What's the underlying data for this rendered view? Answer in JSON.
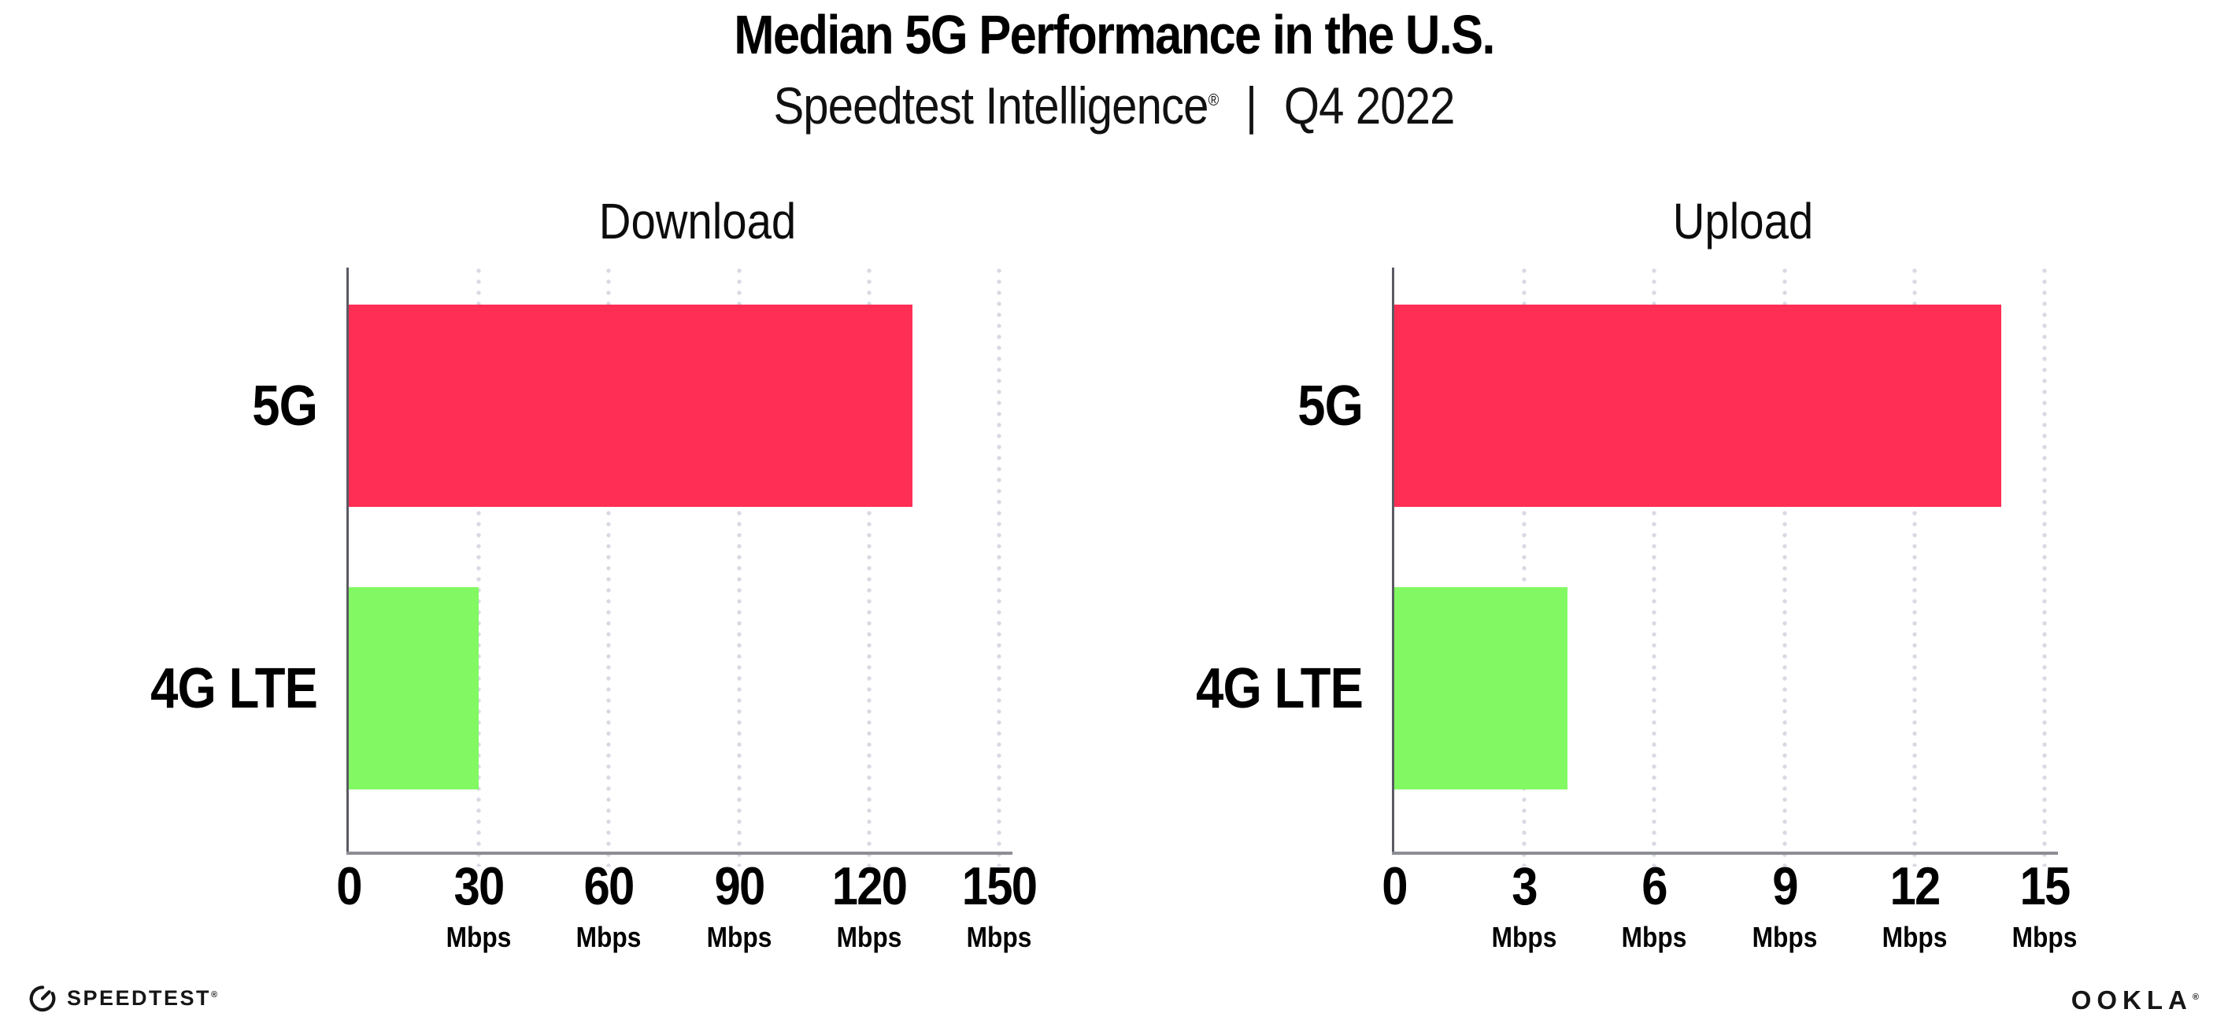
{
  "header": {
    "title": "Median 5G Performance in the U.S.",
    "subtitle_brand": "Speedtest Intelligence",
    "subtitle_reg": "®",
    "subtitle_separator": "|",
    "subtitle_period": "Q4 2022"
  },
  "chart_data": [
    {
      "type": "bar",
      "orientation": "horizontal",
      "title": "Download",
      "categories": [
        "5G",
        "4G LTE"
      ],
      "values": [
        130,
        30
      ],
      "unit": "Mbps",
      "xlim": [
        0,
        150
      ],
      "ticks": [
        0,
        30,
        60,
        90,
        120,
        150
      ],
      "series_colors": [
        "#ff2e55",
        "#82f963"
      ],
      "grid": "vertical-dotted",
      "legend": "none"
    },
    {
      "type": "bar",
      "orientation": "horizontal",
      "title": "Upload",
      "categories": [
        "5G",
        "4G LTE"
      ],
      "values": [
        14,
        4
      ],
      "unit": "Mbps",
      "xlim": [
        0,
        15
      ],
      "ticks": [
        0,
        3,
        6,
        9,
        12,
        15
      ],
      "series_colors": [
        "#ff2e55",
        "#82f963"
      ],
      "grid": "vertical-dotted",
      "legend": "none"
    }
  ],
  "footer": {
    "speedtest_label": "SPEEDTEST",
    "speedtest_reg": "®",
    "ookla_label": "OOKLA",
    "ookla_reg": "®"
  },
  "colors": {
    "bar_5g": "#ff2e55",
    "bar_4g_lte": "#82f963",
    "gridline_dots": "#d9d9e3",
    "x_axis": "#8d8d96",
    "y_axis": "#5a5a62"
  }
}
